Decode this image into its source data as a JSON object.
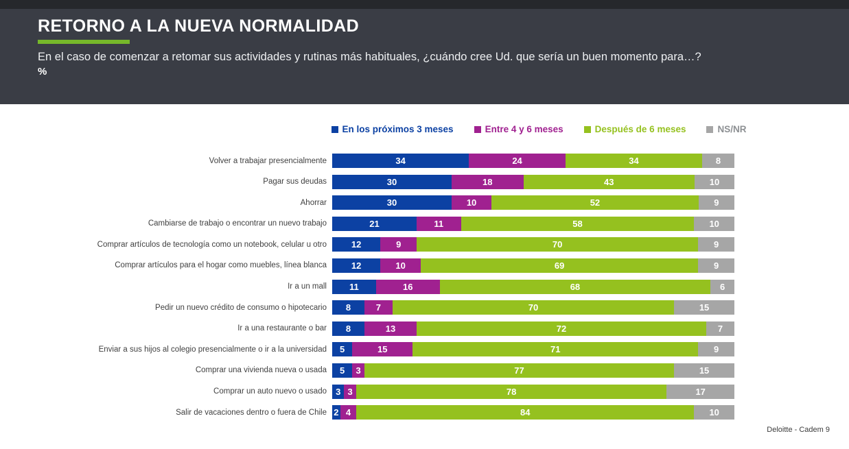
{
  "header": {
    "title": "RETORNO A LA NUEVA NORMALIDAD",
    "subtitle": "En el caso de comenzar a retomar sus actividades y rutinas más habituales, ¿cuándo cree Ud. que sería un buen momento para…?",
    "unit_label": "%",
    "accent_color": "#76b82a",
    "background_color": "#3a3d45"
  },
  "footer": {
    "source_label": "Deloitte - Cadem  9"
  },
  "chart_data": {
    "type": "bar",
    "orientation": "horizontal",
    "stacked": true,
    "unit": "%",
    "xlim": [
      0,
      100
    ],
    "grid": false,
    "legend_position": "top",
    "value_labels": "inside-white-bold",
    "categories": [
      "Volver a trabajar presencialmente",
      "Pagar sus deudas",
      "Ahorrar",
      "Cambiarse de trabajo o encontrar un nuevo trabajo",
      "Comprar artículos de tecnología como un notebook, celular u otro",
      "Comprar artículos para el hogar como muebles, línea blanca",
      "Ir a un mall",
      "Pedir un nuevo crédito de consumo o hipotecario",
      "Ir a una restaurante o bar",
      "Enviar a sus hijos al colegio presencialmente o ir a la universidad",
      "Comprar una vivienda nueva o usada",
      "Comprar un auto nuevo o usado",
      "Salir de vacaciones dentro o fuera de Chile"
    ],
    "series": [
      {
        "name": "En los próximos 3 meses",
        "color": "#0c41a3",
        "legend_text_color": "#0c41a3",
        "values": [
          34,
          30,
          30,
          21,
          12,
          12,
          11,
          8,
          8,
          5,
          5,
          3,
          2
        ]
      },
      {
        "name": "Entre 4 y 6 meses",
        "color": "#a02190",
        "legend_text_color": "#a02190",
        "values": [
          24,
          18,
          10,
          11,
          9,
          10,
          16,
          7,
          13,
          15,
          3,
          3,
          4
        ]
      },
      {
        "name": "Después de 6 meses",
        "color": "#95c11f",
        "legend_text_color": "#95c11f",
        "values": [
          34,
          43,
          52,
          58,
          70,
          69,
          68,
          70,
          72,
          71,
          77,
          78,
          84
        ]
      },
      {
        "name": "NS/NR",
        "color": "#a6a6a6",
        "legend_text_color": "#8d9093",
        "values": [
          8,
          10,
          9,
          10,
          9,
          9,
          6,
          15,
          7,
          9,
          15,
          17,
          10
        ]
      }
    ]
  }
}
